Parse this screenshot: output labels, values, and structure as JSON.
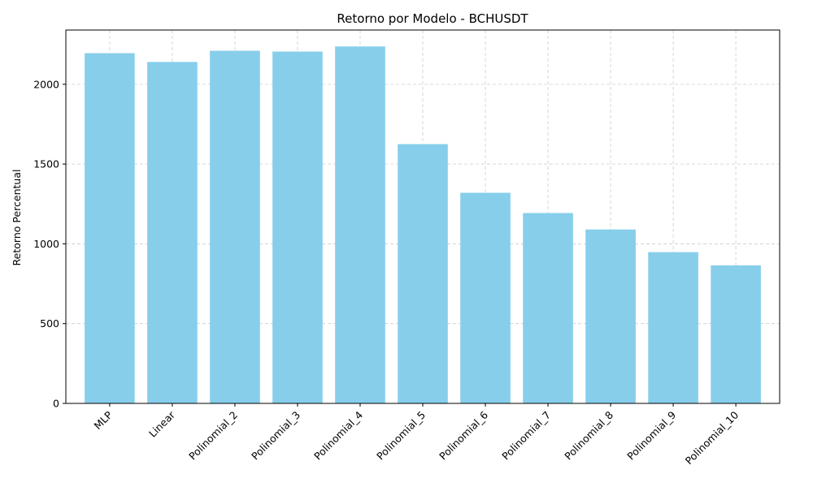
{
  "chart_data": {
    "type": "bar",
    "title": "Retorno por Modelo - BCHUSDT",
    "xlabel": "",
    "ylabel": "Retorno Percentual",
    "categories": [
      "MLP",
      "Linear",
      "Polinomial_2",
      "Polinomial_3",
      "Polinomial_4",
      "Polinomial_5",
      "Polinomial_6",
      "Polinomial_7",
      "Polinomial_8",
      "Polinomial_9",
      "Polinomial_10"
    ],
    "values": [
      2195,
      2140,
      2210,
      2205,
      2237,
      1625,
      1320,
      1193,
      1090,
      948,
      865
    ],
    "ylim": [
      0,
      2340
    ],
    "yticks": [
      0,
      500,
      1000,
      1500,
      2000
    ],
    "grid": true,
    "bar_color": "#87ceeb",
    "grid_color": "#cccccc"
  }
}
